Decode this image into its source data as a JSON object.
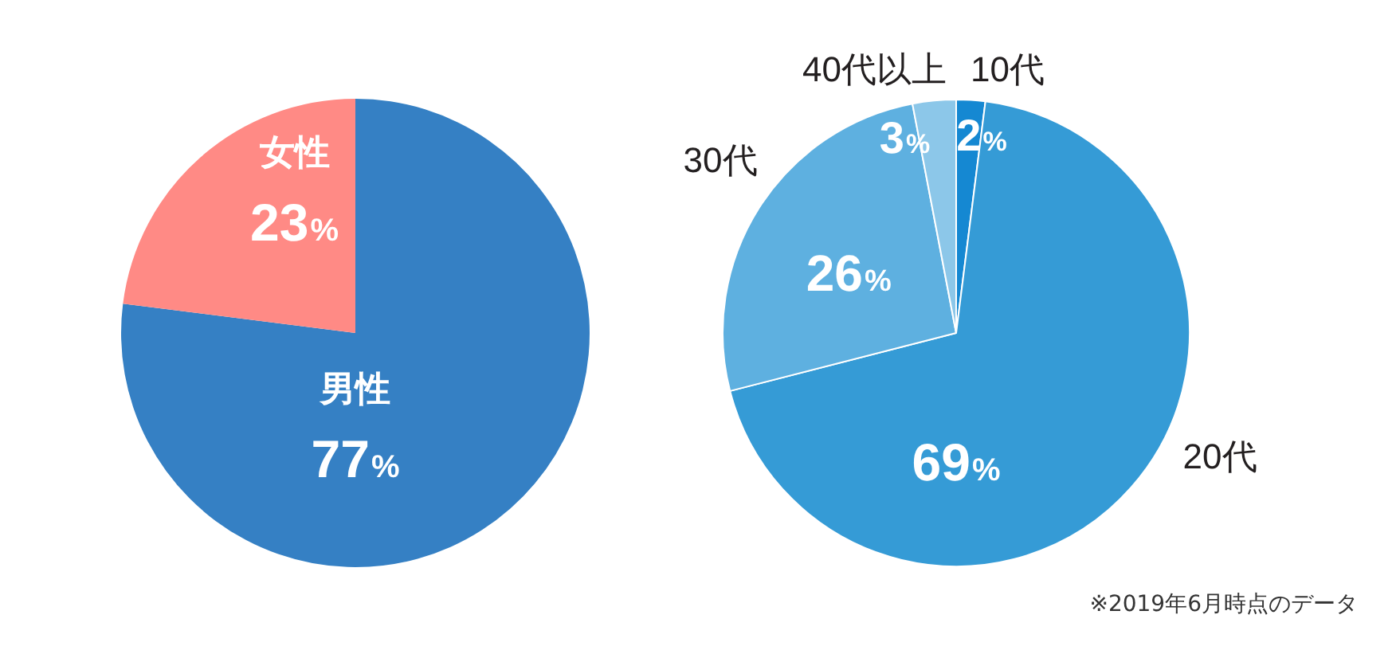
{
  "chart_data": [
    {
      "type": "pie",
      "categories": [
        "男性",
        "女性"
      ],
      "values": [
        77,
        23
      ],
      "colors": [
        "#3580c4",
        "#ff8a85"
      ],
      "value_labels": [
        "77%",
        "23%"
      ],
      "legend": false
    },
    {
      "type": "pie",
      "categories": [
        "10代",
        "20代",
        "30代",
        "40代以上"
      ],
      "values": [
        2,
        69,
        26,
        3
      ],
      "colors": [
        "#1588d2",
        "#359bd6",
        "#5eb0e0",
        "#8cc7e9"
      ],
      "value_labels": [
        "2%",
        "69%",
        "26%",
        "3%"
      ],
      "legend": false,
      "annotations": [
        "※2019年6月時点のデータ"
      ]
    }
  ]
}
